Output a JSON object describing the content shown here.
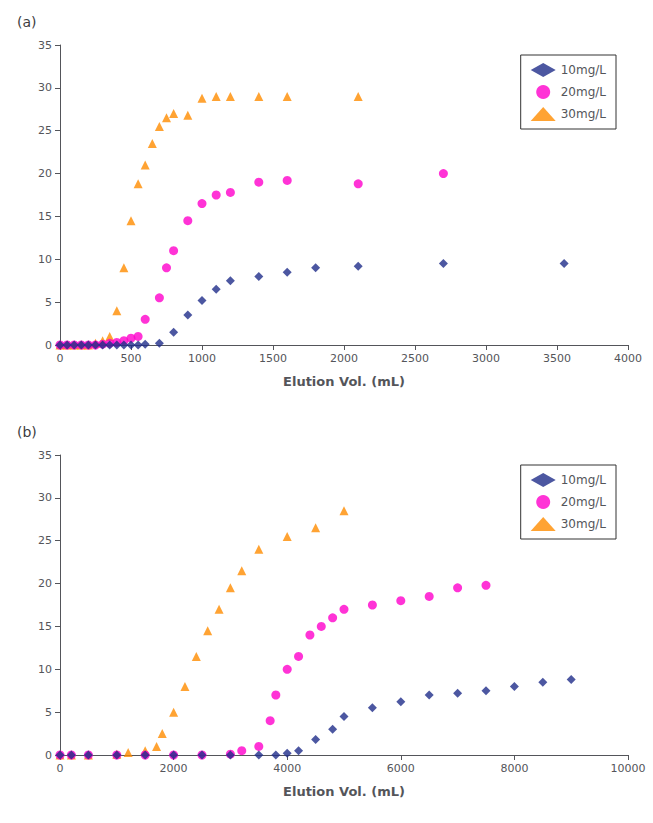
{
  "chart_data": [
    {
      "type": "scatter",
      "title": "(a)",
      "xlabel": "Elution Vol. (mL)",
      "xlim": [
        0,
        4000
      ],
      "ylim": [
        0,
        35
      ],
      "xticks": [
        0,
        500,
        1000,
        1500,
        2000,
        2500,
        3000,
        3500,
        4000
      ],
      "yticks": [
        0,
        5,
        10,
        15,
        20,
        25,
        30,
        35
      ],
      "grid": false,
      "legend": "upper right",
      "series": [
        {
          "name": "10mg/L",
          "color": "#1f2d8a",
          "marker": "diamond",
          "x": [
            0,
            50,
            100,
            150,
            200,
            250,
            300,
            350,
            400,
            450,
            500,
            550,
            600,
            700,
            800,
            900,
            1000,
            1100,
            1200,
            1400,
            1600,
            1800,
            2100,
            2700,
            3550
          ],
          "values": [
            0,
            0,
            0,
            0,
            0,
            0,
            0,
            0,
            0,
            0,
            0,
            0,
            0.1,
            0.2,
            1.5,
            3.5,
            5.2,
            6.5,
            7.5,
            8.0,
            8.5,
            9.0,
            9.2,
            9.5,
            9.5
          ]
        },
        {
          "name": "20mg/L",
          "color": "#ff00cc",
          "marker": "circle",
          "x": [
            0,
            50,
            100,
            150,
            200,
            250,
            300,
            350,
            400,
            450,
            500,
            550,
            600,
            700,
            750,
            800,
            900,
            1000,
            1100,
            1200,
            1400,
            1600,
            2100,
            2700
          ],
          "values": [
            0,
            0,
            0,
            0,
            0,
            0,
            0.1,
            0.2,
            0.3,
            0.5,
            0.8,
            1.0,
            3.0,
            5.5,
            9.0,
            11.0,
            14.5,
            16.5,
            17.5,
            17.8,
            19.0,
            19.2,
            18.8,
            20.0
          ]
        },
        {
          "name": "30mg/L",
          "color": "#ff8c00",
          "marker": "triangle",
          "x": [
            0,
            50,
            100,
            150,
            200,
            250,
            300,
            350,
            400,
            450,
            500,
            550,
            600,
            650,
            700,
            750,
            800,
            900,
            1000,
            1100,
            1200,
            1400,
            1600,
            2100
          ],
          "values": [
            0,
            0,
            0,
            0,
            0,
            0.2,
            0.5,
            1.0,
            4.0,
            9.0,
            14.5,
            18.8,
            21.0,
            23.5,
            25.5,
            26.5,
            27.0,
            26.8,
            28.8,
            29.0,
            29.0,
            29.0,
            29.0,
            29.0
          ]
        }
      ]
    },
    {
      "type": "scatter",
      "title": "(b)",
      "xlabel": "Elution Vol. (mL)",
      "xlim": [
        0,
        10000
      ],
      "ylim": [
        0,
        35
      ],
      "xticks": [
        0,
        2000,
        4000,
        6000,
        8000,
        10000
      ],
      "yticks": [
        0,
        5,
        10,
        15,
        20,
        25,
        30,
        35
      ],
      "grid": false,
      "legend": "upper right",
      "series": [
        {
          "name": "10mg/L",
          "color": "#1f2d8a",
          "marker": "diamond",
          "x": [
            0,
            200,
            500,
            1000,
            1500,
            2000,
            2500,
            3000,
            3500,
            3800,
            4000,
            4200,
            4500,
            4800,
            5000,
            5500,
            6000,
            6500,
            7000,
            7500,
            8000,
            8500,
            9000
          ],
          "values": [
            0,
            0,
            0,
            0,
            0,
            0,
            0,
            0,
            0,
            0,
            0.2,
            0.5,
            1.8,
            3.0,
            4.5,
            5.5,
            6.2,
            7.0,
            7.2,
            7.5,
            8.0,
            8.5,
            8.8
          ]
        },
        {
          "name": "20mg/L",
          "color": "#ff00cc",
          "marker": "circle",
          "x": [
            0,
            200,
            500,
            1000,
            1500,
            2000,
            2500,
            3000,
            3200,
            3500,
            3700,
            3800,
            4000,
            4200,
            4400,
            4600,
            4800,
            5000,
            5500,
            6000,
            6500,
            7000,
            7500
          ],
          "values": [
            0,
            0,
            0,
            0,
            0,
            0,
            0,
            0.1,
            0.5,
            1.0,
            4.0,
            7.0,
            10.0,
            11.5,
            14.0,
            15.0,
            16.0,
            17.0,
            17.5,
            18.0,
            18.5,
            19.5,
            19.8
          ]
        },
        {
          "name": "30mg/L",
          "color": "#ff8c00",
          "marker": "triangle",
          "x": [
            0,
            200,
            500,
            1000,
            1200,
            1500,
            1700,
            1800,
            2000,
            2200,
            2400,
            2600,
            2800,
            3000,
            3200,
            3500,
            4000,
            4500,
            5000
          ],
          "values": [
            0,
            0,
            0,
            0.1,
            0.3,
            0.5,
            1.0,
            2.5,
            5.0,
            8.0,
            11.5,
            14.5,
            17.0,
            19.5,
            21.5,
            24.0,
            25.5,
            26.5,
            28.5
          ]
        }
      ]
    }
  ]
}
